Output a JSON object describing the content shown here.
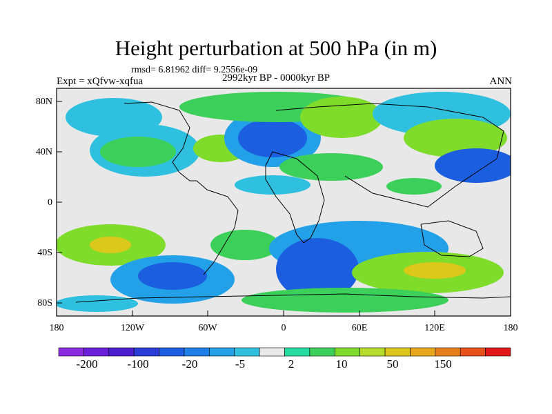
{
  "title": "Height perturbation at 500 hPa (in m)",
  "stats": "rmsd= 6.81962 diff= 9.2556e-09",
  "experiment": "Expt = xQfvw-xqfua",
  "period": "2992kyr BP - 0000kyr BP",
  "season": "ANN",
  "lat_labels": [
    "80N",
    "40N",
    "0",
    "40S",
    "80S"
  ],
  "lon_labels": [
    "180",
    "120W",
    "60W",
    "0",
    "60E",
    "120E",
    "180"
  ],
  "colorbar": {
    "labels": [
      "-200",
      "-100",
      "-20",
      "-5",
      "2",
      "10",
      "50",
      "150"
    ],
    "colors": [
      "#8a2be2",
      "#6a1ed8",
      "#4b1fd0",
      "#2a3dd6",
      "#1c5ee0",
      "#1e7fe6",
      "#22a0e8",
      "#2fc0e0",
      "#e8e8e8",
      "#22dca0",
      "#3ccf5a",
      "#7fdc2a",
      "#b8dc2a",
      "#dcc81a",
      "#e8a81a",
      "#e8801a",
      "#e8501a",
      "#e01a1a"
    ]
  },
  "features": {
    "background": "#e8e8e8",
    "coastline": "#000000"
  }
}
